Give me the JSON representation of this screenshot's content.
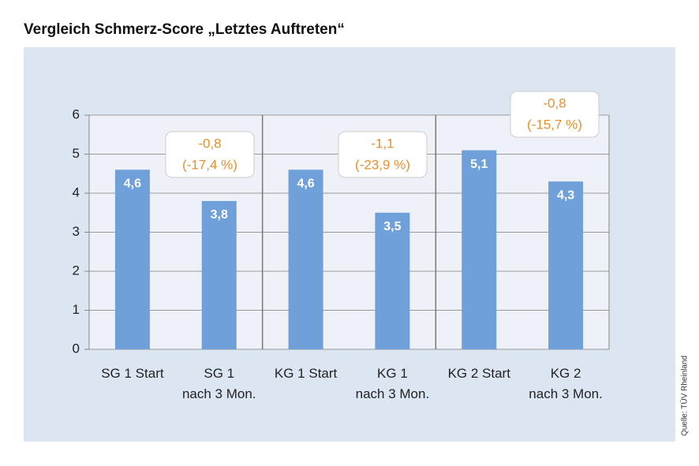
{
  "chart_data": {
    "type": "bar",
    "title": "Vergleich Schmerz-Score „Letztes Auftreten“",
    "categories": [
      "SG 1 Start",
      "SG 1\nnach 3 Mon.",
      "KG 1 Start",
      "KG 1\nnach 3 Mon.",
      "KG 2 Start",
      "KG 2\nnach 3 Mon."
    ],
    "values": [
      4.6,
      3.8,
      4.6,
      3.5,
      5.1,
      4.3
    ],
    "value_labels": [
      "4,6",
      "3,8",
      "4,6",
      "3,5",
      "5,1",
      "4,3"
    ],
    "color": "#6fa0d9",
    "ylim": [
      0,
      6
    ],
    "yticks": [
      0,
      1,
      2,
      3,
      4,
      5,
      6
    ],
    "grid": true,
    "annotations": [
      [
        "-0,8",
        "(-17,4 %)"
      ],
      [
        "-1,1",
        "(-23,9 %)"
      ],
      [
        "-0,8",
        "(-15,7 %)"
      ]
    ],
    "source": "Quelle: TÜV Rheinland"
  }
}
